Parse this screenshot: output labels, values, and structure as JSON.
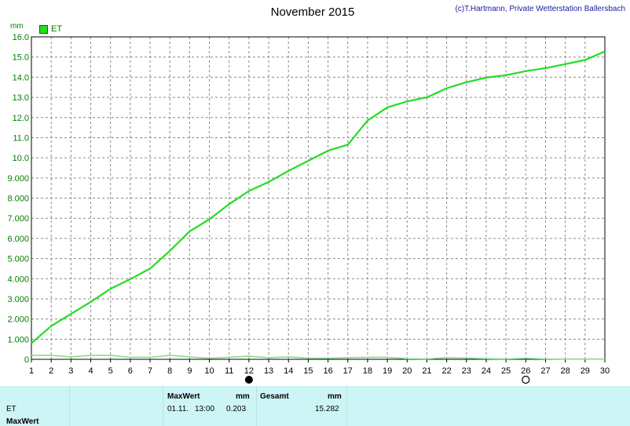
{
  "header": {
    "title": "November 2015",
    "credit": "(c)T.Hartmann, Private Wetterstation Ballersbach"
  },
  "chart_data": {
    "type": "line",
    "title": "November 2015",
    "ylabel": "mm",
    "xlim": [
      1,
      30
    ],
    "ylim": [
      0,
      16
    ],
    "grid": true,
    "legend_position": "top-left",
    "x_ticks": [
      "1",
      "2",
      "3",
      "4",
      "5",
      "6",
      "7",
      "8",
      "9",
      "10",
      "11",
      "12",
      "13",
      "14",
      "15",
      "16",
      "17",
      "18",
      "19",
      "20",
      "21",
      "22",
      "23",
      "24",
      "25",
      "26",
      "27",
      "28",
      "29",
      "30"
    ],
    "y_ticks": [
      "0",
      "1.000",
      "2.000",
      "3.000",
      "4.000",
      "5.000",
      "6.000",
      "7.000",
      "8.000",
      "9.000",
      "10.0",
      "11.0",
      "12.0",
      "13.0",
      "14.0",
      "15.0",
      "16.0"
    ],
    "series": [
      {
        "name": "ET",
        "color": "#22dd22",
        "x": [
          1,
          2,
          3,
          4,
          5,
          6,
          7,
          8,
          9,
          10,
          11,
          12,
          13,
          14,
          15,
          16,
          17,
          18,
          19,
          20,
          21,
          22,
          23,
          24,
          25,
          26,
          27,
          28,
          29,
          30
        ],
        "values": [
          0.8,
          1.65,
          2.25,
          2.85,
          3.5,
          3.98,
          4.5,
          5.38,
          6.35,
          6.95,
          7.7,
          8.35,
          8.8,
          9.35,
          9.85,
          10.35,
          10.65,
          11.85,
          12.5,
          12.8,
          13.0,
          13.45,
          13.75,
          13.98,
          14.1,
          14.3,
          14.45,
          14.65,
          14.85,
          15.28
        ]
      },
      {
        "color": "#88dd88",
        "x": [
          1,
          2,
          3,
          4,
          5,
          6,
          7,
          8,
          9,
          10,
          11,
          12,
          13,
          14,
          15,
          16,
          17,
          18,
          19,
          20,
          21,
          22,
          23,
          24,
          25,
          26,
          27,
          28,
          29,
          30
        ],
        "values": [
          0.2,
          0.2,
          0.12,
          0.2,
          0.2,
          0.1,
          0.1,
          0.2,
          0.12,
          0.05,
          0.1,
          0.15,
          0.08,
          0.12,
          0.06,
          0.05,
          0.08,
          0.1,
          0.1,
          0.03,
          0.02,
          0.08,
          0.06,
          0.03,
          0.02,
          0.05,
          0.02,
          0.01,
          0.01,
          0.01
        ]
      }
    ],
    "markers": [
      {
        "x": 12,
        "symbol": "filled-circle"
      },
      {
        "x": 26,
        "symbol": "open-circle"
      }
    ]
  },
  "footer": {
    "row1_label": "ET",
    "row2_label": "MaxWert",
    "max_header": "MaxWert",
    "max_unit": "mm",
    "max_date": "01.11.",
    "max_time": "13:00",
    "max_value": "0.203",
    "total_header": "Gesamt",
    "total_unit": "mm",
    "total_value": "15.282"
  }
}
